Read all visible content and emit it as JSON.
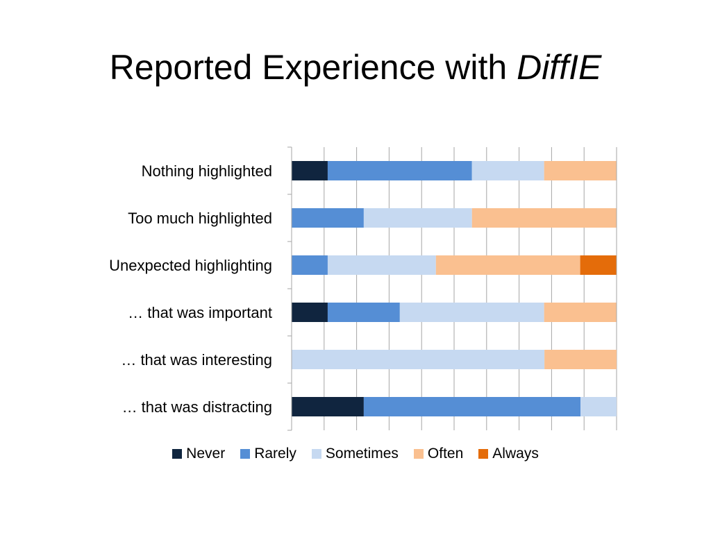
{
  "title": {
    "main": "Reported Experience with ",
    "italic": "DiffIE"
  },
  "chart_data": {
    "type": "bar",
    "orientation": "horizontal",
    "stacked": "100%",
    "categories": [
      "Nothing highlighted",
      "Too much highlighted",
      "Unexpected highlighting",
      "… that was important",
      "… that was interesting",
      "… that was distracting"
    ],
    "series": [
      {
        "name": "Never",
        "color": "#10253f",
        "values": [
          11.1,
          0,
          0,
          11.1,
          0,
          22.2
        ]
      },
      {
        "name": "Rarely",
        "color": "#558ed5",
        "values": [
          44.4,
          22.2,
          11.1,
          22.2,
          0,
          66.7
        ]
      },
      {
        "name": "Sometimes",
        "color": "#c6d9f1",
        "values": [
          22.2,
          33.3,
          33.3,
          44.4,
          77.8,
          11.1
        ]
      },
      {
        "name": "Often",
        "color": "#fac090",
        "values": [
          22.2,
          44.4,
          44.4,
          22.2,
          22.2,
          0
        ]
      },
      {
        "name": "Always",
        "color": "#e46c0a",
        "values": [
          0,
          0,
          11.1,
          0,
          0,
          0
        ]
      }
    ],
    "xlim": [
      0,
      100
    ],
    "grid": true,
    "gridline_count": 10,
    "legend_position": "bottom",
    "gridline_color": "#a6a6a6"
  }
}
